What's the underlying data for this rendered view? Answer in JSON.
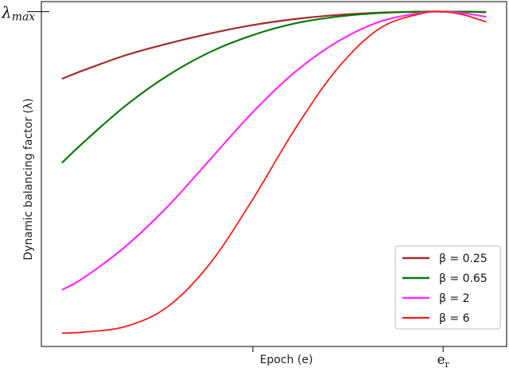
{
  "chart_data": {
    "type": "line",
    "xlabel": "Epoch (e)",
    "ylabel": "Dynamic balancing factor (λ)",
    "xlim": [
      0,
      1.1
    ],
    "ylim": [
      0,
      1.03
    ],
    "x_ticks": [
      {
        "value": 0.5,
        "label": ""
      },
      {
        "value": 0.95,
        "label_main": "e",
        "label_sub": "r"
      }
    ],
    "y_ticks": [
      {
        "value": 1.0,
        "label_main": "λ",
        "label_sub": "max"
      }
    ],
    "legend_position": "bottom-right",
    "series": [
      {
        "name": "β = 0.25",
        "legend_label": "β = 0.25",
        "color": "#a52a2a",
        "stroke_width": 2.2,
        "x": [
          0.05,
          0.1,
          0.2,
          0.3,
          0.4,
          0.5,
          0.6,
          0.7,
          0.8,
          0.9,
          0.95,
          1.0,
          1.05
        ],
        "y": [
          0.8,
          0.825,
          0.87,
          0.905,
          0.935,
          0.96,
          0.978,
          0.99,
          0.997,
          1.0,
          1.0,
          1.0,
          0.999
        ]
      },
      {
        "name": "β = 0.65",
        "legend_label": "β = 0.65",
        "color": "#0a7a0a",
        "stroke_width": 2.2,
        "x": [
          0.05,
          0.1,
          0.2,
          0.3,
          0.4,
          0.5,
          0.6,
          0.7,
          0.8,
          0.9,
          0.95,
          1.0,
          1.05
        ],
        "y": [
          0.55,
          0.61,
          0.72,
          0.81,
          0.88,
          0.93,
          0.965,
          0.985,
          0.996,
          1.0,
          1.0,
          1.0,
          0.998
        ]
      },
      {
        "name": "β = 2",
        "legend_label": "β = 2",
        "color": "#ff2cff",
        "stroke_width": 2.2,
        "x": [
          0.05,
          0.1,
          0.2,
          0.3,
          0.4,
          0.5,
          0.6,
          0.7,
          0.8,
          0.9,
          0.95,
          1.0,
          1.05
        ],
        "y": [
          0.17,
          0.205,
          0.3,
          0.42,
          0.56,
          0.7,
          0.82,
          0.91,
          0.97,
          0.997,
          1.0,
          0.995,
          0.985
        ]
      },
      {
        "name": "β = 6",
        "legend_label": "β = 6",
        "color": "#ff1a1a",
        "stroke_width": 1.8,
        "x": [
          0.05,
          0.1,
          0.2,
          0.3,
          0.4,
          0.5,
          0.6,
          0.7,
          0.8,
          0.9,
          0.95,
          1.0,
          1.05
        ],
        "y": [
          0.04,
          0.043,
          0.06,
          0.12,
          0.25,
          0.44,
          0.65,
          0.83,
          0.95,
          0.995,
          1.0,
          0.99,
          0.97
        ]
      }
    ]
  }
}
